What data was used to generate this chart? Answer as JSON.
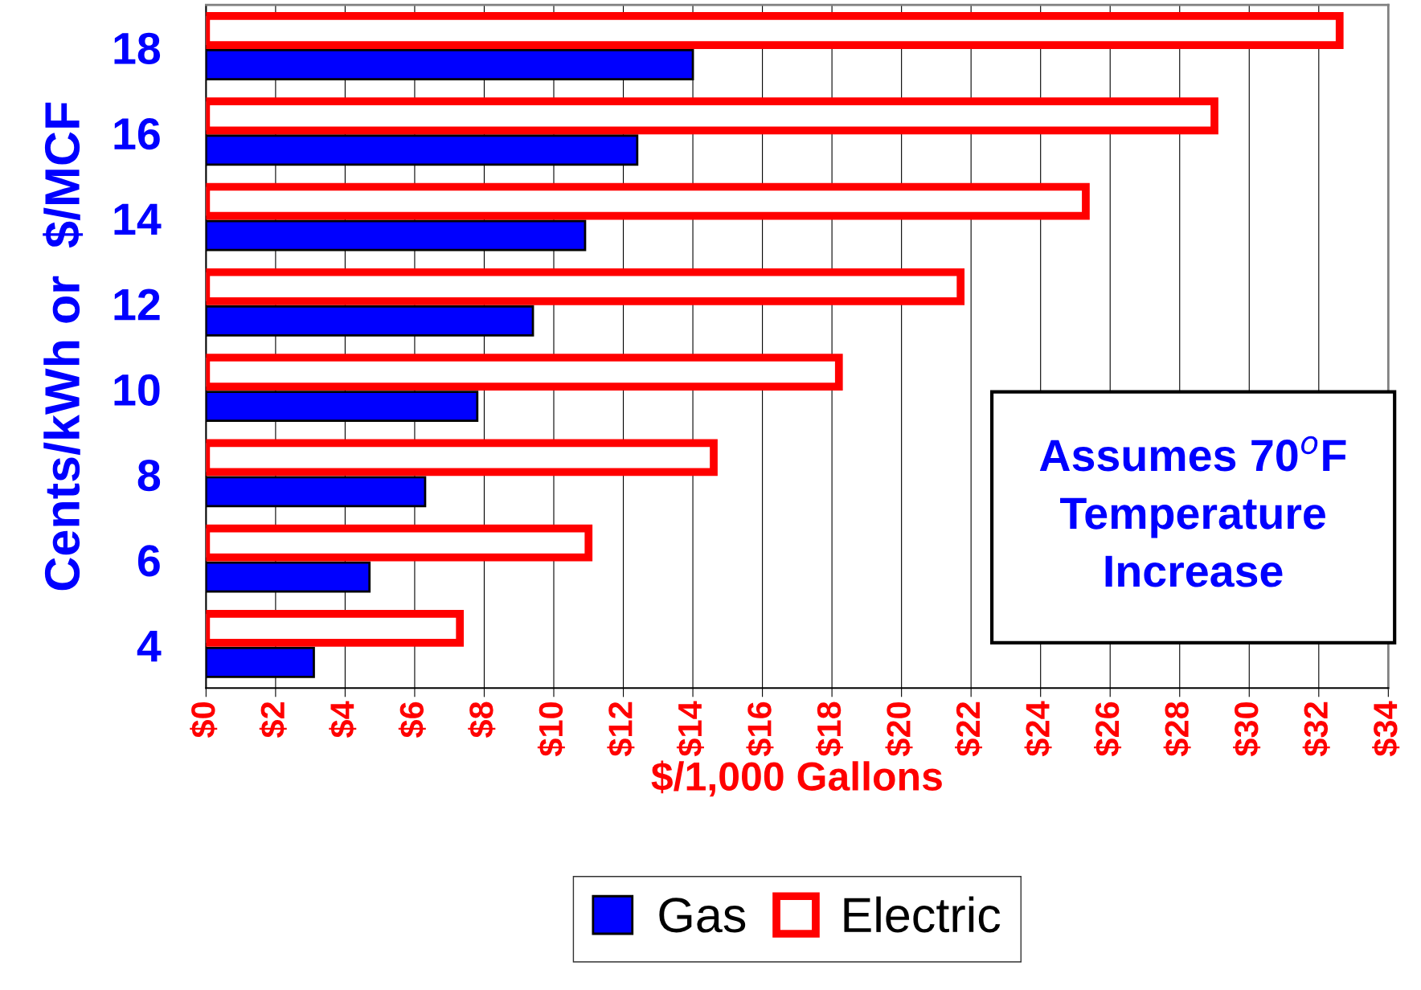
{
  "chart_data": {
    "type": "bar",
    "orientation": "horizontal",
    "xlabel": "$/1,000 Gallons",
    "ylabel": "Cents/kWh or  $/MCF",
    "categories": [
      "18",
      "16",
      "14",
      "12",
      "10",
      "8",
      "6",
      "4"
    ],
    "series": [
      {
        "name": "Gas",
        "color": "#0000ff",
        "values": [
          14.0,
          12.4,
          10.9,
          9.4,
          7.8,
          6.3,
          4.7,
          3.1
        ]
      },
      {
        "name": "Electric",
        "color": "#ff0000",
        "values": [
          32.6,
          29.0,
          25.3,
          21.7,
          18.2,
          14.6,
          11.0,
          7.3
        ]
      }
    ],
    "xlim": [
      0,
      34
    ],
    "xticks": [
      {
        "value": 0,
        "label": "$0"
      },
      {
        "value": 2,
        "label": "$2"
      },
      {
        "value": 4,
        "label": "$4"
      },
      {
        "value": 6,
        "label": "$6"
      },
      {
        "value": 8,
        "label": "$8"
      },
      {
        "value": 10,
        "label": "$10"
      },
      {
        "value": 12,
        "label": "$12"
      },
      {
        "value": 14,
        "label": "$14"
      },
      {
        "value": 16,
        "label": "$16"
      },
      {
        "value": 18,
        "label": "$18"
      },
      {
        "value": 20,
        "label": "$20"
      },
      {
        "value": 22,
        "label": "$22"
      },
      {
        "value": 24,
        "label": "$24"
      },
      {
        "value": 26,
        "label": "$26"
      },
      {
        "value": 28,
        "label": "$28"
      },
      {
        "value": 30,
        "label": "$30"
      },
      {
        "value": 32,
        "label": "$32"
      },
      {
        "value": 34,
        "label": "$34"
      }
    ],
    "grid": "x",
    "legend": "bottom",
    "annotations": [
      "Assumes 70$^{o}$F\nTemperature\nIncrease"
    ]
  }
}
